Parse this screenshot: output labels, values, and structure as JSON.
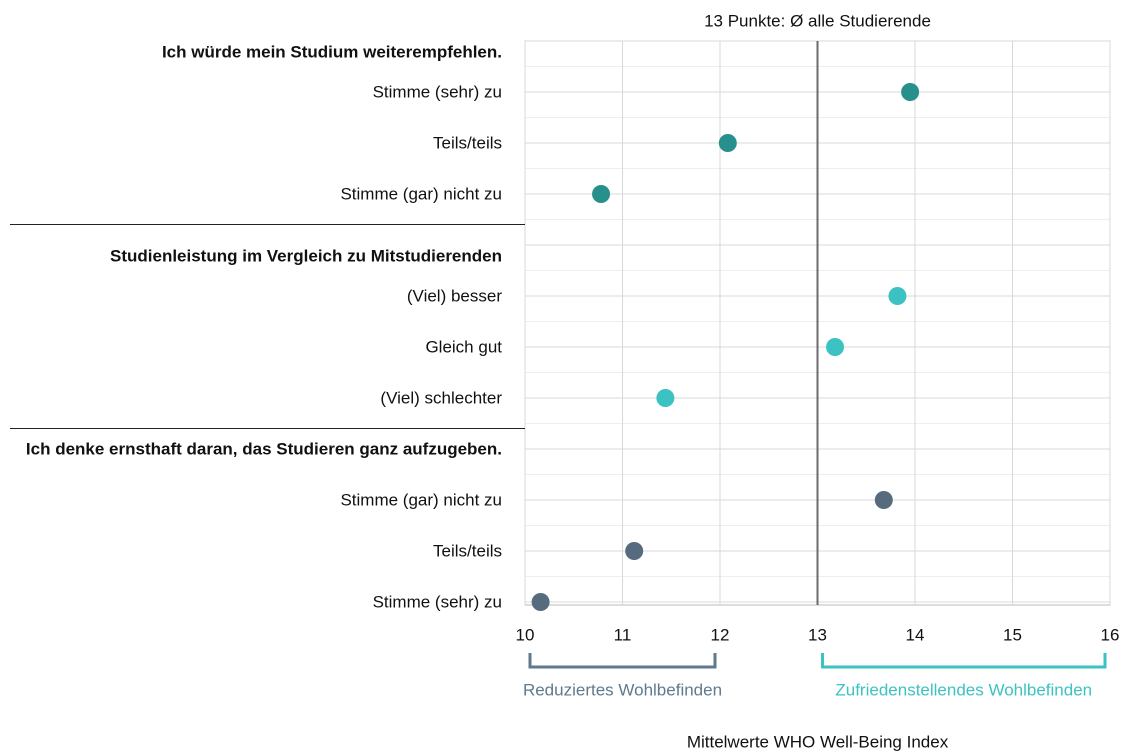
{
  "chart_data": {
    "type": "dot",
    "reference": {
      "value": 13,
      "label": "13 Punkte: Ø alle Studierende",
      "color": "#6b6b6b"
    },
    "groups": [
      {
        "title": "Ich würde mein Studium weiterempfehlen.",
        "color": "#27908d",
        "categories": [
          "Stimme (sehr) zu",
          "Teils/teils",
          "Stimme (gar) nicht zu"
        ],
        "values": [
          13.95,
          12.08,
          10.78
        ]
      },
      {
        "title": "Studienleistung im Vergleich zu Mitstudierenden",
        "color": "#3cc2c2",
        "categories": [
          "(Viel) besser",
          "Gleich gut",
          "(Viel) schlechter"
        ],
        "values": [
          13.82,
          13.18,
          11.44
        ]
      },
      {
        "title": "Ich denke ernsthaft daran, das Studieren ganz aufzugeben.",
        "color": "#566b7e",
        "categories": [
          "Stimme (gar) nicht zu",
          "Teils/teils",
          "Stimme (sehr) zu"
        ],
        "values": [
          13.68,
          11.12,
          10.16
        ]
      }
    ],
    "xlim": [
      10,
      16
    ],
    "xticks": [
      10,
      11,
      12,
      13,
      14,
      15,
      16
    ],
    "grid": true,
    "ranges": [
      {
        "label": "Reduziertes Wohlbefinden",
        "from": 10,
        "to": 12,
        "color": "#5f7a8e"
      },
      {
        "label": "Zufriedenstellendes Wohlbefinden",
        "from": 13,
        "to": 16,
        "color": "#3cc2c2"
      }
    ],
    "xlabel": "Mittelwerte WHO Well-Being Index"
  }
}
